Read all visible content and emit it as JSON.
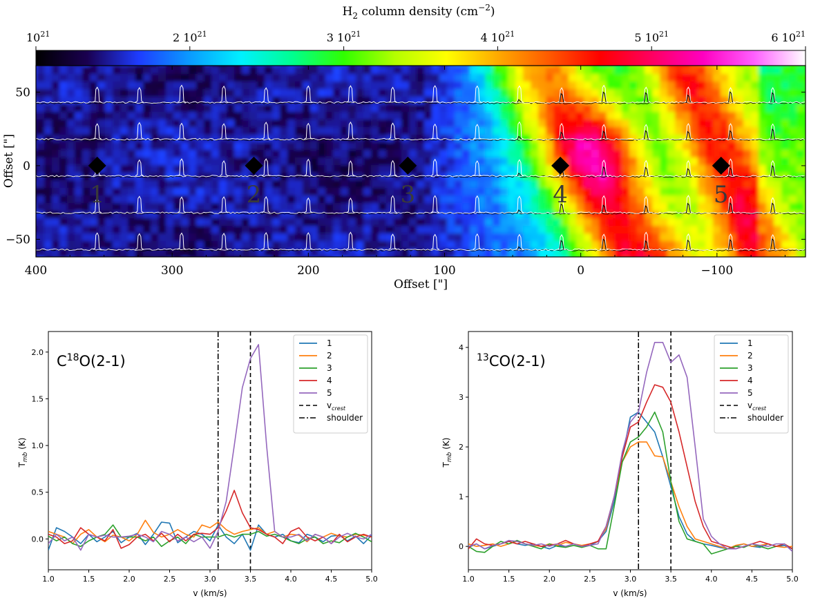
{
  "colors": {
    "cmap": [
      "#000000",
      "#1a0050",
      "#1e3cff",
      "#0a9bff",
      "#00f0ff",
      "#00ff90",
      "#30ff00",
      "#b4ff00",
      "#ffff00",
      "#ffaa00",
      "#ff5a00",
      "#ff0000",
      "#ff0060",
      "#ff00c0",
      "#ff60ff",
      "#ffffff"
    ],
    "series": [
      "#1f77b4",
      "#ff7f0e",
      "#2ca02c",
      "#d62728",
      "#9467bd"
    ]
  },
  "chart_data": [
    {
      "type": "heatmap",
      "title": "",
      "colorbar": {
        "label_main": "H",
        "label_sub": "2",
        "label_rest": " column density (cm",
        "label_exp": "−2",
        "label_end": ")",
        "range": [
          1,
          6
        ],
        "ticks": [
          {
            "value": 1,
            "mant": "",
            "base": "10",
            "exp": "21"
          },
          {
            "value": 2,
            "mant": "2 ",
            "base": "10",
            "exp": "21"
          },
          {
            "value": 3,
            "mant": "3 ",
            "base": "10",
            "exp": "21"
          },
          {
            "value": 4,
            "mant": "4 ",
            "base": "10",
            "exp": "21"
          },
          {
            "value": 5,
            "mant": "5 ",
            "base": "10",
            "exp": "21"
          },
          {
            "value": 6,
            "mant": "6 ",
            "base": "10",
            "exp": "21"
          }
        ]
      },
      "xlabel": "Offset [\"]",
      "ylabel": "Offset [\"]",
      "xlim": [
        400,
        -165
      ],
      "ylim": [
        -62,
        68
      ],
      "xticks": [
        {
          "value": 400,
          "label": "400"
        },
        {
          "value": 300,
          "label": "300"
        },
        {
          "value": 200,
          "label": "200"
        },
        {
          "value": 100,
          "label": "100"
        },
        {
          "value": 0,
          "label": "0"
        },
        {
          "value": -100,
          "label": "−100"
        }
      ],
      "yticks": [
        {
          "value": 50,
          "label": "50"
        },
        {
          "value": 0,
          "label": "0"
        },
        {
          "value": -50,
          "label": "−50"
        }
      ],
      "spectra_rows": [
        43,
        18,
        -7,
        -32,
        -57
      ],
      "spectra_cols": [
        355,
        324,
        293,
        262,
        231,
        200,
        169,
        138,
        107,
        76,
        45,
        14,
        -17,
        -48,
        -79,
        -110,
        -141
      ],
      "markers": [
        {
          "label": "1",
          "x": 355,
          "y": 0
        },
        {
          "label": "2",
          "x": 240,
          "y": 0
        },
        {
          "label": "3",
          "x": 127,
          "y": 0
        },
        {
          "label": "4",
          "x": 15,
          "y": 0
        },
        {
          "label": "5",
          "x": -103,
          "y": 0
        }
      ]
    },
    {
      "type": "line",
      "title": "C18O(2-1)",
      "title_prefix": "C",
      "title_sup": "18",
      "title_suffix": "O(2-1)",
      "xlabel": "v (km/s)",
      "ylabel_main": "T",
      "ylabel_sub": "mb",
      "ylabel_end": " (K)",
      "xlim": [
        1.0,
        5.0
      ],
      "ylim": [
        -0.33,
        2.22
      ],
      "xticks": [
        1.0,
        1.5,
        2.0,
        2.5,
        3.0,
        3.5,
        4.0,
        4.5,
        5.0
      ],
      "yticks": [
        0.0,
        0.5,
        1.0,
        1.5,
        2.0
      ],
      "xtick_labels": [
        "1.0",
        "1.5",
        "2.0",
        "2.5",
        "3.0",
        "3.5",
        "4.0",
        "4.5",
        "5.0"
      ],
      "ytick_labels": [
        "0.0",
        "0.5",
        "1.0",
        "1.5",
        "2.0"
      ],
      "vlines": [
        {
          "x": 3.5,
          "style": "dashed"
        },
        {
          "x": 3.1,
          "style": "dashdot"
        }
      ],
      "x": [
        1.0,
        1.1,
        1.2,
        1.3,
        1.4,
        1.5,
        1.6,
        1.7,
        1.8,
        1.9,
        2.0,
        2.1,
        2.2,
        2.3,
        2.4,
        2.5,
        2.6,
        2.7,
        2.8,
        2.9,
        3.0,
        3.1,
        3.2,
        3.3,
        3.4,
        3.5,
        3.6,
        3.7,
        3.8,
        3.9,
        4.0,
        4.1,
        4.2,
        4.3,
        4.4,
        4.5,
        4.6,
        4.7,
        4.8,
        4.9,
        5.0
      ],
      "series": [
        {
          "name": "1",
          "values": [
            -0.12,
            0.12,
            0.08,
            0.02,
            -0.05,
            0.05,
            -0.03,
            0.02,
            0.08,
            -0.04,
            0.02,
            0.06,
            -0.06,
            0.05,
            0.18,
            0.17,
            -0.04,
            0.02,
            0.08,
            0.05,
            -0.02,
            0.15,
            0.02,
            -0.05,
            0.05,
            -0.12,
            0.15,
            0.05,
            0.02,
            0.05,
            -0.02,
            -0.04,
            0.05,
            0.02,
            -0.03,
            0.03,
            0.04,
            -0.02,
            0.03,
            -0.05,
            0.04
          ]
        },
        {
          "name": "2",
          "values": [
            0.08,
            0.05,
            0.02,
            -0.05,
            0.05,
            0.1,
            0.02,
            -0.03,
            0.04,
            0.02,
            -0.02,
            0.05,
            0.2,
            0.07,
            0.02,
            0.05,
            0.1,
            0.05,
            0.02,
            0.15,
            0.12,
            0.18,
            0.1,
            0.05,
            0.08,
            0.1,
            0.12,
            0.05,
            0.08,
            0.02,
            0.05,
            0.04,
            -0.03,
            0.05,
            0.02,
            0.06,
            0.03,
            0.02,
            0.05,
            0.04,
            0.02
          ]
        },
        {
          "name": "3",
          "values": [
            0.03,
            -0.02,
            0.02,
            -0.05,
            -0.08,
            -0.02,
            0.02,
            0.05,
            0.15,
            0.02,
            0.02,
            0.02,
            -0.02,
            0.02,
            -0.08,
            -0.02,
            0.02,
            -0.05,
            0.05,
            0.02,
            0.02,
            0.02,
            0.05,
            0.02,
            0.05,
            0.05,
            0.08,
            0.03,
            0.05,
            0.02,
            -0.02,
            -0.05,
            0.0,
            0.02,
            -0.05,
            -0.02,
            -0.04,
            0.02,
            0.06,
            0.02,
            -0.03
          ]
        },
        {
          "name": "4",
          "values": [
            0.05,
            0.02,
            -0.05,
            -0.02,
            0.12,
            0.05,
            0.02,
            -0.02,
            0.1,
            -0.1,
            -0.06,
            0.02,
            0.05,
            -0.02,
            0.06,
            -0.03,
            0.05,
            -0.02,
            0.05,
            0.06,
            0.05,
            0.12,
            0.3,
            0.52,
            0.28,
            0.12,
            0.1,
            0.05,
            0.02,
            -0.05,
            0.08,
            0.12,
            0.02,
            -0.02,
            0.02,
            -0.05,
            0.05,
            -0.03,
            0.02,
            0.05,
            0.02
          ]
        },
        {
          "name": "5",
          "values": [
            -0.05,
            0.05,
            -0.02,
            0.02,
            -0.12,
            0.05,
            0.02,
            0.04,
            0.02,
            0.02,
            0.03,
            0.05,
            0.02,
            -0.03,
            0.08,
            0.05,
            -0.02,
            0.02,
            -0.03,
            0.02,
            -0.1,
            0.08,
            0.4,
            1.0,
            1.62,
            1.93,
            2.08,
            1.0,
            0.08,
            0.02,
            0.02,
            0.05,
            -0.02,
            0.05,
            0.02,
            -0.05,
            0.02,
            0.06,
            0.02,
            0.0,
            0.05
          ]
        }
      ],
      "legend": {
        "position": "upper-right",
        "entries": [
          "1",
          "2",
          "3",
          "4",
          "5"
        ],
        "vcrest_main": "v",
        "vcrest_sub": "crest",
        "shoulder": "shoulder"
      }
    },
    {
      "type": "line",
      "title": "13CO(2-1)",
      "title_prefix": "",
      "title_sup": "13",
      "title_suffix": "CO(2-1)",
      "xlabel": "v (km/s)",
      "ylabel_main": "T",
      "ylabel_sub": "mb",
      "ylabel_end": " (K)",
      "xlim": [
        1.0,
        5.0
      ],
      "ylim": [
        -0.47,
        4.32
      ],
      "xticks": [
        1.0,
        1.5,
        2.0,
        2.5,
        3.0,
        3.5,
        4.0,
        4.5,
        5.0
      ],
      "yticks": [
        0,
        1,
        2,
        3,
        4
      ],
      "xtick_labels": [
        "1.0",
        "1.5",
        "2.0",
        "2.5",
        "3.0",
        "3.5",
        "4.0",
        "4.5",
        "5.0"
      ],
      "ytick_labels": [
        "0",
        "1",
        "2",
        "3",
        "4"
      ],
      "vlines": [
        {
          "x": 3.5,
          "style": "dashed"
        },
        {
          "x": 3.1,
          "style": "dashdot"
        }
      ],
      "x": [
        1.0,
        1.1,
        1.2,
        1.3,
        1.4,
        1.5,
        1.6,
        1.7,
        1.8,
        1.9,
        2.0,
        2.1,
        2.2,
        2.3,
        2.4,
        2.5,
        2.6,
        2.7,
        2.8,
        2.9,
        3.0,
        3.1,
        3.2,
        3.3,
        3.4,
        3.5,
        3.6,
        3.7,
        3.8,
        3.9,
        4.0,
        4.1,
        4.2,
        4.3,
        4.4,
        4.5,
        4.6,
        4.7,
        4.8,
        4.9,
        5.0
      ],
      "series": [
        {
          "name": "1",
          "values": [
            -0.02,
            0.05,
            -0.05,
            0.0,
            0.05,
            0.1,
            0.05,
            0.02,
            0.05,
            0.0,
            -0.05,
            0.02,
            0.0,
            0.05,
            0.0,
            0.02,
            0.1,
            0.3,
            0.9,
            1.8,
            2.6,
            2.7,
            2.5,
            2.3,
            1.8,
            1.2,
            0.6,
            0.25,
            0.1,
            0.05,
            0.02,
            -0.02,
            -0.05,
            0.0,
            0.05,
            0.0,
            -0.02,
            0.05,
            0.0,
            0.02,
            -0.05
          ]
        },
        {
          "name": "2",
          "values": [
            0.05,
            0.0,
            0.02,
            0.05,
            0.0,
            0.05,
            0.1,
            0.05,
            0.02,
            0.0,
            0.05,
            0.02,
            0.08,
            0.05,
            0.02,
            0.05,
            0.1,
            0.35,
            1.0,
            1.7,
            2.0,
            2.1,
            2.1,
            1.82,
            1.8,
            1.3,
            0.8,
            0.4,
            0.15,
            0.1,
            0.05,
            0.0,
            -0.05,
            0.02,
            0.05,
            0.0,
            0.02,
            0.05,
            0.0,
            -0.02,
            0.0
          ]
        },
        {
          "name": "3",
          "values": [
            0.0,
            -0.1,
            -0.12,
            0.0,
            0.1,
            0.05,
            0.12,
            0.05,
            0.0,
            -0.05,
            0.05,
            0.0,
            -0.02,
            0.02,
            -0.02,
            0.02,
            -0.05,
            -0.05,
            0.8,
            1.7,
            2.1,
            2.2,
            2.4,
            2.7,
            2.3,
            1.3,
            0.5,
            0.15,
            0.1,
            0.05,
            -0.15,
            -0.1,
            -0.05,
            0.0,
            -0.02,
            0.05,
            0.0,
            -0.05,
            0.0,
            0.05,
            -0.05
          ]
        },
        {
          "name": "4",
          "values": [
            -0.05,
            0.15,
            0.05,
            0.02,
            0.05,
            0.1,
            0.05,
            0.1,
            0.05,
            0.0,
            0.02,
            0.05,
            0.12,
            0.05,
            0.0,
            0.05,
            0.1,
            0.4,
            1.0,
            1.8,
            2.4,
            2.5,
            2.9,
            3.25,
            3.2,
            2.9,
            2.3,
            1.6,
            0.9,
            0.4,
            0.1,
            0.05,
            0.0,
            -0.05,
            0.0,
            0.05,
            0.1,
            0.05,
            0.0,
            0.05,
            -0.05
          ]
        },
        {
          "name": "5",
          "values": [
            0.0,
            0.05,
            -0.05,
            0.02,
            0.05,
            0.12,
            0.1,
            0.05,
            0.02,
            0.05,
            0.0,
            0.05,
            0.0,
            0.05,
            0.0,
            0.02,
            0.05,
            0.4,
            1.0,
            1.9,
            2.5,
            2.7,
            3.5,
            4.1,
            4.1,
            3.7,
            3.85,
            3.4,
            2.0,
            0.55,
            0.2,
            0.05,
            -0.05,
            -0.05,
            0.0,
            0.05,
            0.02,
            0.0,
            0.05,
            0.05,
            -0.1
          ]
        }
      ],
      "legend": {
        "position": "upper-right",
        "entries": [
          "1",
          "2",
          "3",
          "4",
          "5"
        ],
        "vcrest_main": "v",
        "vcrest_sub": "crest",
        "shoulder": "shoulder"
      }
    }
  ]
}
